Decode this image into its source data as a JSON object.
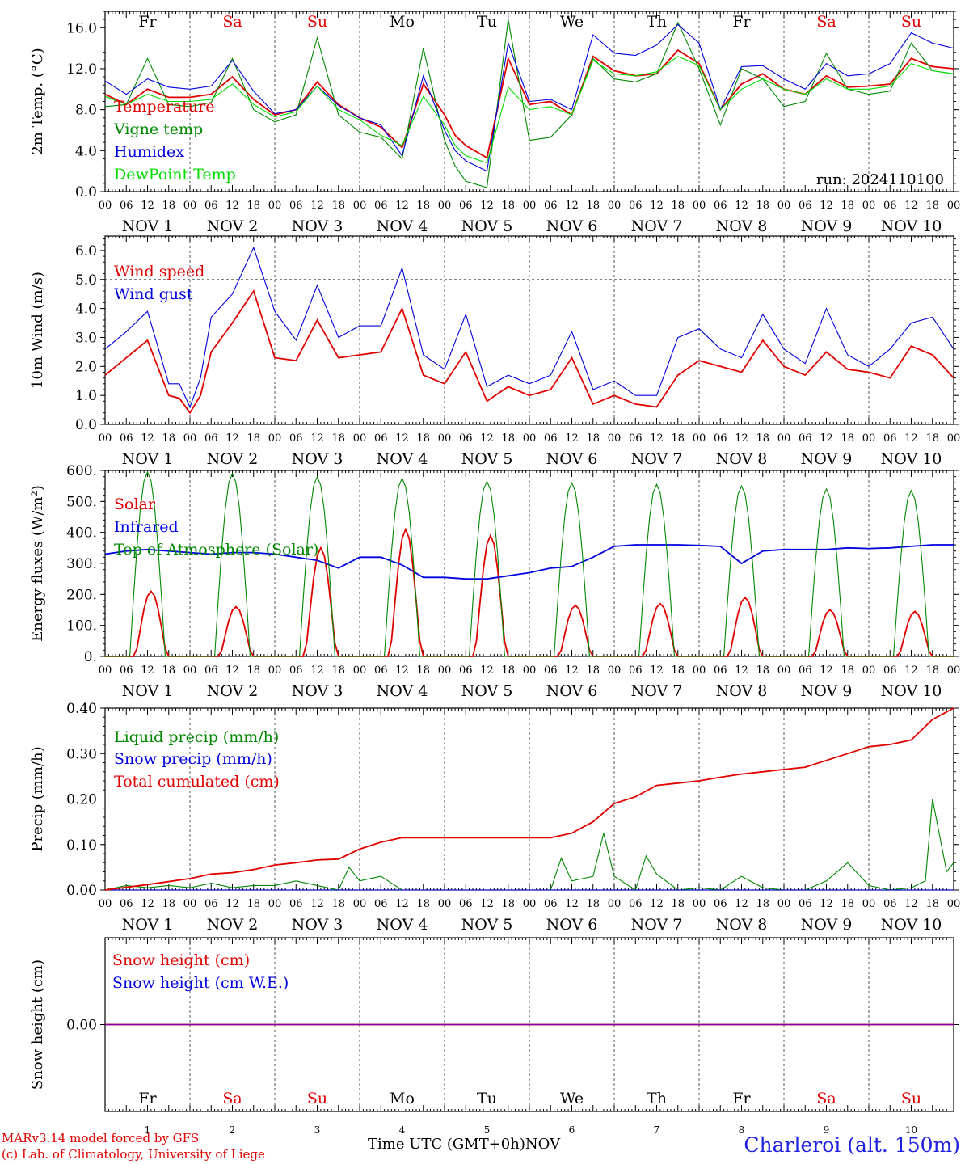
{
  "colors": {
    "red": "#e00000",
    "green": "#008800",
    "blue": "#0000e0",
    "lightgreen": "#00dd00",
    "purple": "#8000a0",
    "grid": "#555555"
  },
  "days": [
    "Fr",
    "Sa",
    "Su",
    "Mo",
    "Tu",
    "We",
    "Th",
    "Fr",
    "Sa",
    "Su"
  ],
  "weekend_days": [
    "Sa",
    "Su"
  ],
  "day_numbers": [
    "1",
    "2",
    "3",
    "4",
    "5",
    "6",
    "7",
    "8",
    "9",
    "10"
  ],
  "date_labels": [
    "NOV  1",
    "NOV  2",
    "NOV  3",
    "NOV  4",
    "NOV  5",
    "NOV  6",
    "NOV  7",
    "NOV  8",
    "NOV  9",
    "NOV 10"
  ],
  "hour_labels": [
    "00",
    "06",
    "12",
    "18"
  ],
  "run_label": "run: 2024110100",
  "footer": {
    "model": "MARv3.14 model forced by GFS",
    "copyright": "(c) Lab. of Climatology, University of Liege",
    "xlabel": "Time UTC (GMT+0h)",
    "xunit": "NOV",
    "station": "Charleroi (alt. 150m)"
  },
  "chart_data": [
    {
      "type": "line",
      "id": "temperature",
      "ylabel": "2m Temp. (°C)",
      "ylim": [
        0,
        17.6
      ],
      "yticks": [
        "0.0",
        "4.0",
        "8.0",
        "12.0",
        "16.0"
      ],
      "ytick_values": [
        0,
        4,
        8,
        12,
        16
      ],
      "x_unit": "hours since Nov 1 00 UTC",
      "series": [
        {
          "name": "Temperature",
          "color": "red",
          "x": [
            0,
            6,
            12,
            18,
            24,
            30,
            36,
            42,
            48,
            54,
            60,
            66,
            72,
            78,
            84,
            90,
            96,
            99,
            102,
            108,
            114,
            120,
            126,
            132,
            138,
            144,
            150,
            156,
            162,
            168,
            174,
            180,
            186,
            192,
            198,
            204,
            210,
            216,
            222,
            228,
            234,
            240
          ],
          "y": [
            9.5,
            8.5,
            10.0,
            9.2,
            9.2,
            9.5,
            11.2,
            9.0,
            7.5,
            8.0,
            10.7,
            8.5,
            7.2,
            6.3,
            4.3,
            10.5,
            7.5,
            5.5,
            4.5,
            3.3,
            13.0,
            8.5,
            8.8,
            7.5,
            13.2,
            11.8,
            11.3,
            11.5,
            13.8,
            12.5,
            8.0,
            10.5,
            11.5,
            10.0,
            9.5,
            11.3,
            10.2,
            10.3,
            10.5,
            13.0,
            12.2,
            12.0
          ]
        },
        {
          "name": "Vigne temp",
          "color": "green",
          "x": [
            0,
            6,
            12,
            18,
            24,
            30,
            36,
            42,
            48,
            54,
            60,
            66,
            72,
            78,
            84,
            90,
            96,
            99,
            102,
            108,
            114,
            120,
            126,
            132,
            138,
            144,
            150,
            156,
            162,
            168,
            174,
            180,
            186,
            192,
            198,
            204,
            210,
            216,
            222,
            228,
            234,
            240
          ],
          "y": [
            8.3,
            8.5,
            13.0,
            8.5,
            8.3,
            8.7,
            13.0,
            8.0,
            6.8,
            7.5,
            15.0,
            7.5,
            5.8,
            5.3,
            3.2,
            14.0,
            5.0,
            2.5,
            1.0,
            0.4,
            16.8,
            5.0,
            5.3,
            7.5,
            13.0,
            11.0,
            10.7,
            11.5,
            16.5,
            12.0,
            6.5,
            12.0,
            11.0,
            8.3,
            8.8,
            13.5,
            10.0,
            9.5,
            9.8,
            14.5,
            11.8,
            11.5
          ]
        },
        {
          "name": "Humidex",
          "color": "blue",
          "x": [
            0,
            6,
            12,
            18,
            24,
            30,
            36,
            42,
            48,
            54,
            60,
            66,
            72,
            78,
            84,
            90,
            96,
            99,
            102,
            108,
            114,
            120,
            126,
            132,
            138,
            144,
            150,
            156,
            162,
            168,
            174,
            180,
            186,
            192,
            198,
            204,
            210,
            216,
            222,
            228,
            234,
            240
          ],
          "y": [
            10.8,
            9.5,
            11.0,
            10.2,
            10.0,
            10.3,
            12.8,
            9.8,
            7.6,
            8.0,
            10.3,
            8.4,
            7.2,
            6.5,
            3.5,
            11.3,
            6.0,
            4.0,
            3.0,
            2.0,
            14.5,
            8.8,
            9.0,
            8.0,
            15.3,
            13.5,
            13.3,
            14.3,
            16.3,
            14.5,
            8.0,
            12.2,
            12.3,
            11.0,
            10.0,
            12.5,
            11.3,
            11.5,
            12.5,
            15.5,
            14.5,
            14.0
          ]
        },
        {
          "name": "DewPoint Temp",
          "color": "lightgreen",
          "x": [
            0,
            6,
            12,
            18,
            24,
            30,
            36,
            42,
            48,
            54,
            60,
            66,
            72,
            78,
            84,
            90,
            96,
            99,
            102,
            108,
            114,
            120,
            126,
            132,
            138,
            144,
            150,
            156,
            162,
            168,
            174,
            180,
            186,
            192,
            198,
            204,
            210,
            216,
            222,
            228,
            234,
            240
          ],
          "y": [
            9.3,
            8.5,
            9.5,
            8.8,
            8.8,
            9.0,
            10.5,
            8.5,
            7.3,
            7.8,
            10.3,
            8.0,
            7.0,
            5.5,
            4.5,
            9.3,
            6.5,
            4.5,
            3.5,
            2.8,
            10.2,
            8.0,
            8.3,
            7.5,
            12.8,
            11.5,
            11.3,
            11.7,
            13.2,
            12.3,
            8.0,
            10.0,
            11.0,
            10.0,
            9.5,
            11.0,
            10.0,
            10.0,
            10.3,
            12.5,
            11.8,
            11.5
          ]
        }
      ]
    },
    {
      "type": "line",
      "id": "wind",
      "ylabel": "10m Wind (m/s)",
      "ylim": [
        0,
        6.5
      ],
      "yticks": [
        "0.0",
        "1.0",
        "2.0",
        "3.0",
        "4.0",
        "5.0",
        "6.0"
      ],
      "ytick_values": [
        0,
        1,
        2,
        3,
        4,
        5,
        6
      ],
      "reference_line": 5.0,
      "x_unit": "hours since Nov 1 00 UTC",
      "series": [
        {
          "name": "Wind speed",
          "color": "red",
          "x": [
            0,
            6,
            12,
            18,
            21,
            24,
            27,
            30,
            36,
            42,
            48,
            54,
            60,
            66,
            72,
            78,
            84,
            90,
            96,
            102,
            108,
            114,
            120,
            126,
            132,
            138,
            144,
            150,
            156,
            162,
            168,
            174,
            180,
            186,
            192,
            198,
            204,
            210,
            216,
            222,
            228,
            234,
            240
          ],
          "y": [
            1.7,
            2.3,
            2.9,
            1.0,
            0.9,
            0.4,
            1.0,
            2.5,
            3.5,
            4.6,
            2.3,
            2.2,
            3.6,
            2.3,
            2.4,
            2.5,
            4.0,
            1.7,
            1.4,
            2.5,
            0.8,
            1.3,
            1.0,
            1.2,
            2.3,
            0.7,
            1.0,
            0.7,
            0.6,
            1.7,
            2.2,
            2.0,
            1.8,
            2.9,
            2.0,
            1.7,
            2.5,
            1.9,
            1.8,
            1.6,
            2.7,
            2.4,
            1.6
          ]
        },
        {
          "name": "Wind gust",
          "color": "blue",
          "x": [
            0,
            6,
            12,
            18,
            21,
            24,
            27,
            30,
            36,
            42,
            48,
            54,
            60,
            66,
            72,
            78,
            84,
            90,
            96,
            102,
            108,
            114,
            120,
            126,
            132,
            138,
            144,
            150,
            156,
            162,
            168,
            174,
            180,
            186,
            192,
            198,
            204,
            210,
            216,
            222,
            228,
            234,
            240
          ],
          "y": [
            2.6,
            3.2,
            3.9,
            1.4,
            1.4,
            0.6,
            1.6,
            3.7,
            4.5,
            6.1,
            3.9,
            2.9,
            4.8,
            3.0,
            3.4,
            3.4,
            5.4,
            2.4,
            1.9,
            3.8,
            1.3,
            1.7,
            1.4,
            1.7,
            3.2,
            1.2,
            1.5,
            1.0,
            1.0,
            3.0,
            3.3,
            2.6,
            2.3,
            3.8,
            2.6,
            2.1,
            4.0,
            2.4,
            2.0,
            2.6,
            3.5,
            3.7,
            2.6
          ]
        }
      ]
    },
    {
      "type": "line",
      "id": "energy",
      "ylabel": "Energy fluxes (W/m²)",
      "ylim": [
        0,
        600
      ],
      "yticks": [
        "0.",
        "100.",
        "200.",
        "300.",
        "400.",
        "500.",
        "600."
      ],
      "ytick_values": [
        0,
        100,
        200,
        300,
        400,
        500,
        600
      ],
      "x_unit": "hours since Nov 1 00 UTC",
      "series": [
        {
          "name": "Solar",
          "color": "red",
          "peak_hour": 13,
          "peaks": [
            210,
            160,
            350,
            410,
            390,
            165,
            170,
            190,
            150,
            145
          ],
          "half_width": 4.5
        },
        {
          "name": "Infrared",
          "color": "blue",
          "x": [
            0,
            6,
            12,
            18,
            24,
            30,
            36,
            42,
            48,
            60,
            66,
            72,
            78,
            84,
            90,
            96,
            102,
            108,
            114,
            120,
            126,
            132,
            138,
            144,
            150,
            156,
            162,
            168,
            174,
            180,
            186,
            192,
            198,
            204,
            210,
            216,
            222,
            228,
            234,
            240
          ],
          "y": [
            330,
            340,
            345,
            340,
            335,
            330,
            335,
            335,
            330,
            310,
            285,
            320,
            320,
            295,
            255,
            255,
            250,
            250,
            260,
            270,
            285,
            290,
            320,
            355,
            360,
            360,
            360,
            358,
            355,
            300,
            340,
            345,
            345,
            345,
            350,
            348,
            350,
            355,
            360,
            360
          ]
        },
        {
          "name": "Top of Atmosphere (Solar)",
          "color": "green",
          "peak_hour": 12,
          "peaks": [
            595,
            590,
            580,
            575,
            565,
            560,
            555,
            550,
            540,
            535
          ],
          "half_width": 5
        }
      ]
    },
    {
      "type": "line",
      "id": "precip",
      "ylabel": "Precip (mm/h)",
      "ylim": [
        0,
        0.4
      ],
      "yticks": [
        "0.00",
        "0.10",
        "0.20",
        "0.30",
        "0.40"
      ],
      "ytick_values": [
        0,
        0.1,
        0.2,
        0.3,
        0.4
      ],
      "x_unit": "hours since Nov 1 00 UTC",
      "series": [
        {
          "name": "Liquid precip (mm/h)",
          "color": "green",
          "x": [
            0,
            6,
            12,
            18,
            24,
            30,
            36,
            42,
            48,
            54,
            60,
            66,
            69,
            72,
            78,
            84,
            90,
            96,
            102,
            108,
            114,
            120,
            126,
            129,
            132,
            138,
            141,
            144,
            150,
            153,
            156,
            162,
            168,
            174,
            180,
            186,
            192,
            198,
            204,
            210,
            216,
            222,
            228,
            232,
            234,
            238,
            240
          ],
          "y": [
            0,
            0.01,
            0.005,
            0.01,
            0.005,
            0.015,
            0.005,
            0.01,
            0.01,
            0.02,
            0.01,
            0,
            0.05,
            0.02,
            0.03,
            0.0,
            0,
            0,
            0,
            0,
            0,
            0,
            0,
            0.07,
            0.02,
            0.03,
            0.125,
            0.03,
            0.0,
            0.075,
            0.035,
            0.0,
            0.005,
            0.0,
            0.03,
            0.005,
            0.0,
            0.0,
            0.02,
            0.06,
            0.01,
            0.0,
            0.005,
            0.02,
            0.2,
            0.04,
            0.06
          ]
        },
        {
          "name": "Snow precip (mm/h)",
          "color": "blue",
          "x": [
            0,
            240
          ],
          "y": [
            0,
            0
          ]
        },
        {
          "name": "Total cumulated (cm)",
          "color": "red",
          "x": [
            0,
            12,
            24,
            30,
            36,
            42,
            48,
            54,
            60,
            66,
            72,
            78,
            84,
            90,
            96,
            102,
            108,
            114,
            120,
            126,
            132,
            138,
            144,
            150,
            156,
            162,
            168,
            174,
            180,
            186,
            192,
            198,
            204,
            210,
            216,
            222,
            228,
            234,
            240
          ],
          "y": [
            0,
            0.012,
            0.025,
            0.035,
            0.038,
            0.045,
            0.055,
            0.06,
            0.066,
            0.068,
            0.09,
            0.105,
            0.115,
            0.115,
            0.115,
            0.115,
            0.115,
            0.115,
            0.115,
            0.115,
            0.125,
            0.15,
            0.19,
            0.205,
            0.23,
            0.235,
            0.24,
            0.248,
            0.255,
            0.26,
            0.265,
            0.27,
            0.285,
            0.3,
            0.315,
            0.32,
            0.33,
            0.375,
            0.4
          ]
        }
      ]
    },
    {
      "type": "line",
      "id": "snow",
      "ylabel": "Snow height (cm)",
      "ylim": [
        -1,
        1
      ],
      "yticks": [
        "0.00"
      ],
      "ytick_values": [
        0
      ],
      "x_unit": "hours since Nov 1 00 UTC",
      "series": [
        {
          "name": "Snow height (cm)",
          "color": "red",
          "x": [
            0,
            240
          ],
          "y": [
            0,
            0
          ]
        },
        {
          "name": "Snow height (cm W.E.)",
          "color": "blue",
          "x": [
            0,
            240
          ],
          "y": [
            0,
            0
          ]
        }
      ]
    }
  ]
}
